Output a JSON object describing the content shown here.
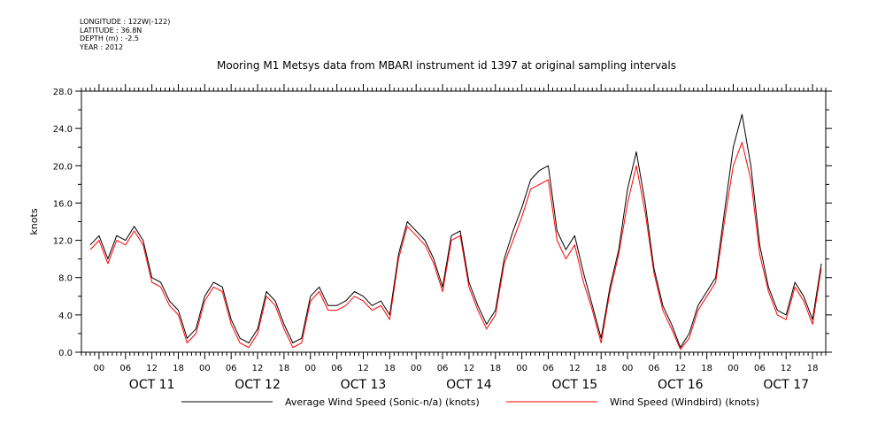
{
  "meta": {
    "longitude": "LONGITUDE : 122W(-122)",
    "latitude": "LATITUDE : 36.8N",
    "depth": "DEPTH (m) : -2.5",
    "year": "YEAR : 2012"
  },
  "chart_data": {
    "type": "line",
    "title": "Mooring M1 Metsys data from MBARI instrument id 1397 at original sampling intervals",
    "ylabel": "knots",
    "xlabel": "",
    "ylim": [
      0,
      28
    ],
    "y_ticks": [
      "0.0",
      "4.0",
      "8.0",
      "12.0",
      "16.0",
      "20.0",
      "24.0",
      "28.0"
    ],
    "x_start": "2012-10-10T20:00",
    "x_end": "2012-10-17T21:00",
    "x_hour_ticks": [
      "00",
      "06",
      "12",
      "18"
    ],
    "x_day_labels": [
      "OCT 11",
      "OCT 12",
      "OCT 13",
      "OCT 14",
      "OCT 15",
      "OCT 16",
      "OCT 17"
    ],
    "grid": false,
    "legend_position": "bottom",
    "x": [
      "2012-10-10T22:00",
      "2012-10-11T00:00",
      "2012-10-11T02:00",
      "2012-10-11T04:00",
      "2012-10-11T06:00",
      "2012-10-11T08:00",
      "2012-10-11T10:00",
      "2012-10-11T12:00",
      "2012-10-11T14:00",
      "2012-10-11T16:00",
      "2012-10-11T18:00",
      "2012-10-11T20:00",
      "2012-10-11T22:00",
      "2012-10-12T00:00",
      "2012-10-12T02:00",
      "2012-10-12T04:00",
      "2012-10-12T06:00",
      "2012-10-12T08:00",
      "2012-10-12T10:00",
      "2012-10-12T12:00",
      "2012-10-12T14:00",
      "2012-10-12T16:00",
      "2012-10-12T18:00",
      "2012-10-12T20:00",
      "2012-10-12T22:00",
      "2012-10-13T00:00",
      "2012-10-13T02:00",
      "2012-10-13T04:00",
      "2012-10-13T06:00",
      "2012-10-13T08:00",
      "2012-10-13T10:00",
      "2012-10-13T12:00",
      "2012-10-13T14:00",
      "2012-10-13T16:00",
      "2012-10-13T18:00",
      "2012-10-13T20:00",
      "2012-10-13T22:00",
      "2012-10-14T00:00",
      "2012-10-14T02:00",
      "2012-10-14T04:00",
      "2012-10-14T06:00",
      "2012-10-14T08:00",
      "2012-10-14T10:00",
      "2012-10-14T12:00",
      "2012-10-14T14:00",
      "2012-10-14T16:00",
      "2012-10-14T18:00",
      "2012-10-14T20:00",
      "2012-10-14T22:00",
      "2012-10-15T00:00",
      "2012-10-15T02:00",
      "2012-10-15T04:00",
      "2012-10-15T06:00",
      "2012-10-15T08:00",
      "2012-10-15T10:00",
      "2012-10-15T12:00",
      "2012-10-15T14:00",
      "2012-10-15T16:00",
      "2012-10-15T18:00",
      "2012-10-15T20:00",
      "2012-10-15T22:00",
      "2012-10-16T00:00",
      "2012-10-16T02:00",
      "2012-10-16T04:00",
      "2012-10-16T06:00",
      "2012-10-16T08:00",
      "2012-10-16T10:00",
      "2012-10-16T12:00",
      "2012-10-16T14:00",
      "2012-10-16T16:00",
      "2012-10-16T18:00",
      "2012-10-16T20:00",
      "2012-10-16T22:00",
      "2012-10-17T00:00",
      "2012-10-17T02:00",
      "2012-10-17T04:00",
      "2012-10-17T06:00",
      "2012-10-17T08:00",
      "2012-10-17T10:00",
      "2012-10-17T12:00",
      "2012-10-17T14:00",
      "2012-10-17T16:00",
      "2012-10-17T18:00",
      "2012-10-17T20:00"
    ],
    "series": [
      {
        "name": "Average Wind Speed (Sonic-n/a) (knots)",
        "color": "#000000",
        "values": [
          11.5,
          12.5,
          10.0,
          12.5,
          12.0,
          13.5,
          12.0,
          8.0,
          7.5,
          5.5,
          4.5,
          1.5,
          2.5,
          6.0,
          7.5,
          7.0,
          3.5,
          1.5,
          1.0,
          2.5,
          6.5,
          5.5,
          3.0,
          1.0,
          1.5,
          6.0,
          7.0,
          5.0,
          5.0,
          5.5,
          6.5,
          6.0,
          5.0,
          5.5,
          4.0,
          10.5,
          14.0,
          13.0,
          12.0,
          10.0,
          7.0,
          12.5,
          13.0,
          7.5,
          5.0,
          3.0,
          4.5,
          10.0,
          13.0,
          15.5,
          18.5,
          19.5,
          20.0,
          13.0,
          11.0,
          12.5,
          8.5,
          5.0,
          1.5,
          7.0,
          11.0,
          17.5,
          21.5,
          16.0,
          9.0,
          5.0,
          3.0,
          0.5,
          2.0,
          5.0,
          6.5,
          8.0,
          15.0,
          22.0,
          25.5,
          20.0,
          11.5,
          7.0,
          4.5,
          4.0,
          7.5,
          6.0,
          3.5,
          9.5
        ]
      },
      {
        "name": "Wind Speed (Windbird) (knots)",
        "color": "#ff0000",
        "values": [
          11.0,
          12.0,
          9.5,
          12.0,
          11.5,
          13.0,
          11.5,
          7.5,
          7.0,
          5.0,
          4.0,
          1.0,
          2.0,
          5.5,
          7.0,
          6.5,
          3.0,
          1.0,
          0.5,
          2.0,
          6.0,
          5.0,
          2.5,
          0.5,
          1.0,
          5.5,
          6.5,
          4.5,
          4.5,
          5.0,
          6.0,
          5.5,
          4.5,
          5.0,
          3.5,
          10.0,
          13.5,
          12.5,
          11.5,
          9.5,
          6.5,
          12.0,
          12.5,
          7.0,
          4.5,
          2.5,
          4.0,
          9.5,
          12.0,
          14.5,
          17.5,
          18.0,
          18.5,
          12.0,
          10.0,
          11.5,
          7.5,
          4.5,
          1.0,
          6.5,
          10.5,
          16.0,
          20.0,
          15.0,
          8.5,
          4.5,
          2.5,
          0.3,
          1.5,
          4.5,
          6.0,
          7.5,
          14.0,
          20.0,
          22.5,
          18.5,
          10.5,
          6.5,
          4.0,
          3.5,
          7.0,
          5.5,
          3.0,
          9.0
        ]
      }
    ]
  }
}
